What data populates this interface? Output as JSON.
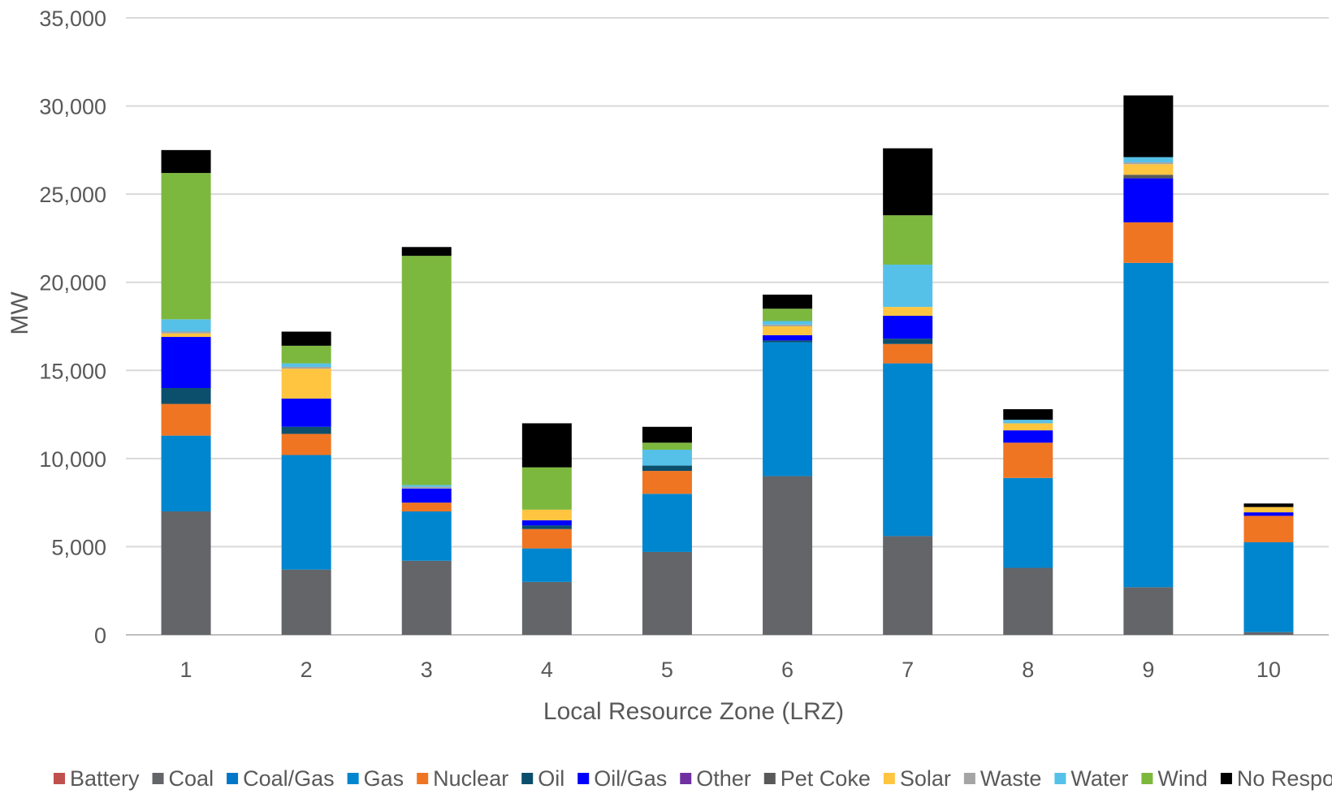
{
  "chart_data": {
    "type": "bar",
    "stacked": true,
    "title": "",
    "xlabel": "Local Resource Zone (LRZ)",
    "ylabel": "MW",
    "ylim": [
      0,
      35000
    ],
    "yticks": [
      0,
      5000,
      10000,
      15000,
      20000,
      25000,
      30000,
      35000
    ],
    "ytick_labels": [
      "0",
      "5,000",
      "10,000",
      "15,000",
      "20,000",
      "25,000",
      "30,000",
      "35,000"
    ],
    "grid": true,
    "legend_position": "bottom",
    "categories": [
      "1",
      "2",
      "3",
      "4",
      "5",
      "6",
      "7",
      "8",
      "9",
      "10"
    ],
    "series": [
      {
        "name": "Battery",
        "color": "#C0504D",
        "values": [
          0,
          0,
          0,
          0,
          0,
          0,
          0,
          0,
          0,
          0
        ]
      },
      {
        "name": "Coal",
        "color": "#646569",
        "values": [
          7000,
          3700,
          4200,
          3000,
          4700,
          9000,
          5600,
          3800,
          2700,
          150
        ]
      },
      {
        "name": "Coal/Gas",
        "color": "#0077C8",
        "values": [
          0,
          0,
          0,
          0,
          0,
          0,
          0,
          0,
          0,
          0
        ]
      },
      {
        "name": "Gas",
        "color": "#0086CE",
        "values": [
          4300,
          6500,
          2800,
          1900,
          3300,
          7600,
          9800,
          5100,
          18400,
          5100
        ]
      },
      {
        "name": "Nuclear",
        "color": "#EF7523",
        "values": [
          1800,
          1200,
          500,
          1100,
          1300,
          0,
          1100,
          2000,
          2300,
          1500
        ]
      },
      {
        "name": "Oil",
        "color": "#0B4F6C",
        "values": [
          900,
          400,
          0,
          200,
          300,
          100,
          300,
          0,
          0,
          0
        ]
      },
      {
        "name": "Oil/Gas",
        "color": "#0000FF",
        "values": [
          2900,
          1600,
          800,
          300,
          0,
          300,
          1300,
          700,
          2500,
          200
        ]
      },
      {
        "name": "Other",
        "color": "#7030A0",
        "values": [
          0,
          0,
          0,
          0,
          0,
          0,
          0,
          0,
          0,
          0
        ]
      },
      {
        "name": "Pet Coke",
        "color": "#595959",
        "values": [
          0,
          0,
          0,
          0,
          0,
          0,
          0,
          0,
          200,
          0
        ]
      },
      {
        "name": "Solar",
        "color": "#FFC540",
        "values": [
          200,
          1700,
          0,
          600,
          0,
          500,
          500,
          400,
          600,
          300
        ]
      },
      {
        "name": "Waste",
        "color": "#A5A5A5",
        "values": [
          100,
          100,
          100,
          0,
          0,
          100,
          0,
          0,
          100,
          0
        ]
      },
      {
        "name": "Water",
        "color": "#56C1E8",
        "values": [
          700,
          200,
          100,
          0,
          900,
          200,
          2400,
          200,
          300,
          0
        ]
      },
      {
        "name": "Wind",
        "color": "#7DB83E",
        "values": [
          8300,
          1000,
          13000,
          2400,
          400,
          700,
          2800,
          0,
          0,
          0
        ]
      },
      {
        "name": "No Response",
        "color": "#000000",
        "values": [
          1300,
          800,
          500,
          2500,
          900,
          800,
          3800,
          600,
          3500,
          200
        ]
      }
    ]
  }
}
